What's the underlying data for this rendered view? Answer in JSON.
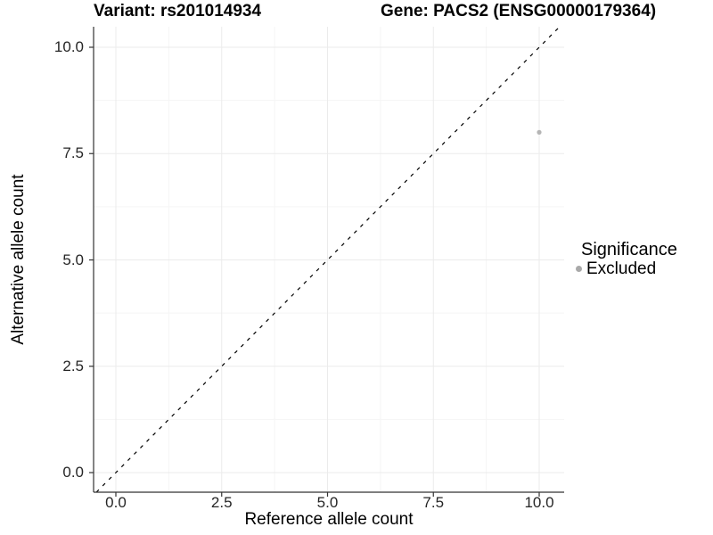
{
  "chart_data": {
    "type": "scatter",
    "titles": {
      "left": "Variant: rs201014934",
      "right": "Gene: PACS2 (ENSG00000179364)"
    },
    "xlabel": "Reference allele count",
    "ylabel": "Alternative allele count",
    "x_ticks": [
      0.0,
      2.5,
      5.0,
      7.5,
      10.0
    ],
    "y_ticks": [
      0.0,
      2.5,
      5.0,
      7.5,
      10.0
    ],
    "x_minor_ticks": [
      1.25,
      3.75,
      6.25,
      8.75
    ],
    "y_minor_ticks": [
      1.25,
      3.75,
      6.25,
      8.75
    ],
    "xlim": [
      -0.55,
      10.6
    ],
    "ylim": [
      -0.46,
      10.48
    ],
    "tick_label_decimals": 1,
    "grid": "major+minor",
    "series": [
      {
        "name": "Excluded",
        "marker": "circle",
        "color": "#b5b5b5",
        "points": [
          {
            "x": 10,
            "y": 8
          }
        ]
      }
    ],
    "reference_line": {
      "type": "identity y=x",
      "style": "dashed",
      "color": "#000000"
    },
    "legend": {
      "position": "right",
      "title": "Significance",
      "entries": [
        {
          "label": "Excluded",
          "color": "#a9a9a9",
          "marker": "circle"
        }
      ]
    },
    "colors": {
      "panel_background": "#ffffff",
      "grid_major": "#ebebeb",
      "grid_minor": "#f5f5f5",
      "axis_line": "#333333",
      "tick_mark": "#333333",
      "tick_label": "#262626",
      "title": "#000000"
    }
  }
}
